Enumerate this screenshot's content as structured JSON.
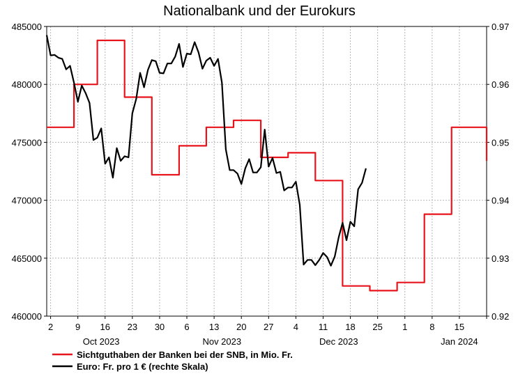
{
  "chart_data": {
    "type": "line",
    "title": "Nationalbank und der Eurokurs",
    "xlabel": "",
    "ylabel": "",
    "y_left": {
      "range": [
        460000,
        485000
      ],
      "ticks": [
        "460000",
        "465000",
        "470000",
        "475000",
        "480000",
        "485000"
      ]
    },
    "y_right": {
      "range": [
        0.92,
        0.97
      ],
      "ticks": [
        "0.92",
        "0.93",
        "0.94",
        "0.95",
        "0.96",
        "0.97"
      ]
    },
    "x_range": [
      "2023-10-01",
      "2024-01-22"
    ],
    "x_ticks": [
      {
        "date": "2023-10-02",
        "label": "2"
      },
      {
        "date": "2023-10-09",
        "label": "9"
      },
      {
        "date": "2023-10-16",
        "label": "16"
      },
      {
        "date": "2023-10-23",
        "label": "23"
      },
      {
        "date": "2023-10-30",
        "label": "30"
      },
      {
        "date": "2023-11-06",
        "label": "6"
      },
      {
        "date": "2023-11-13",
        "label": "13"
      },
      {
        "date": "2023-11-20",
        "label": "20"
      },
      {
        "date": "2023-11-27",
        "label": "27"
      },
      {
        "date": "2023-12-04",
        "label": "4"
      },
      {
        "date": "2023-12-11",
        "label": "11"
      },
      {
        "date": "2023-12-18",
        "label": "18"
      },
      {
        "date": "2023-12-25",
        "label": "25"
      },
      {
        "date": "2024-01-01",
        "label": "1"
      },
      {
        "date": "2024-01-08",
        "label": "8"
      },
      {
        "date": "2024-01-15",
        "label": "15"
      },
      {
        "date": "2024-01-22",
        "label": ""
      }
    ],
    "month_labels": [
      {
        "date": "2023-10-15",
        "label": "Oct 2023"
      },
      {
        "date": "2023-11-15",
        "label": "Nov 2023"
      },
      {
        "date": "2023-12-15",
        "label": "Dec 2023"
      },
      {
        "date": "2024-01-15",
        "label": "Jan 2024"
      }
    ],
    "grid": true,
    "legend_position": "bottom-left",
    "series": [
      {
        "name": "Sichtguthaben der Banken bei der SNB, in Mio. Fr.",
        "axis": "left",
        "color": "#e8141c",
        "step": true,
        "points": [
          [
            "2023-10-01",
            476300
          ],
          [
            "2023-10-08",
            480000
          ],
          [
            "2023-10-14",
            483800
          ],
          [
            "2023-10-21",
            478900
          ],
          [
            "2023-10-28",
            472200
          ],
          [
            "2023-11-04",
            474700
          ],
          [
            "2023-11-11",
            476300
          ],
          [
            "2023-11-18",
            476900
          ],
          [
            "2023-11-25",
            473700
          ],
          [
            "2023-12-02",
            474100
          ],
          [
            "2023-12-09",
            471700
          ],
          [
            "2023-12-16",
            462600
          ],
          [
            "2023-12-23",
            462200
          ],
          [
            "2023-12-30",
            462900
          ],
          [
            "2024-01-06",
            468800
          ],
          [
            "2024-01-13",
            476300
          ],
          [
            "2024-01-20",
            476300
          ],
          [
            "2024-01-22",
            473400
          ]
        ]
      },
      {
        "name": "Euro: Fr. pro 1 € (rechte Skala)",
        "axis": "right",
        "color": "#000000",
        "step": false,
        "points": [
          [
            "2023-10-01",
            0.9685
          ],
          [
            "2023-10-02",
            0.965
          ],
          [
            "2023-10-03",
            0.9651
          ],
          [
            "2023-10-04",
            0.9646
          ],
          [
            "2023-10-05",
            0.9644
          ],
          [
            "2023-10-06",
            0.9626
          ],
          [
            "2023-10-07",
            0.9632
          ],
          [
            "2023-10-08",
            0.9603
          ],
          [
            "2023-10-09",
            0.957
          ],
          [
            "2023-10-10",
            0.9598
          ],
          [
            "2023-10-11",
            0.9585
          ],
          [
            "2023-10-12",
            0.9568
          ],
          [
            "2023-10-13",
            0.9504
          ],
          [
            "2023-10-14",
            0.9508
          ],
          [
            "2023-10-15",
            0.9524
          ],
          [
            "2023-10-16",
            0.9463
          ],
          [
            "2023-10-17",
            0.9474
          ],
          [
            "2023-10-18",
            0.9439
          ],
          [
            "2023-10-19",
            0.949
          ],
          [
            "2023-10-20",
            0.9468
          ],
          [
            "2023-10-21",
            0.9476
          ],
          [
            "2023-10-22",
            0.9474
          ],
          [
            "2023-10-23",
            0.955
          ],
          [
            "2023-10-24",
            0.9575
          ],
          [
            "2023-10-25",
            0.962
          ],
          [
            "2023-10-26",
            0.9595
          ],
          [
            "2023-10-27",
            0.9625
          ],
          [
            "2023-10-28",
            0.9642
          ],
          [
            "2023-10-29",
            0.964
          ],
          [
            "2023-10-30",
            0.962
          ],
          [
            "2023-10-31",
            0.9619
          ],
          [
            "2023-11-01",
            0.9636
          ],
          [
            "2023-11-02",
            0.9636
          ],
          [
            "2023-11-03",
            0.9648
          ],
          [
            "2023-11-04",
            0.967
          ],
          [
            "2023-11-05",
            0.963
          ],
          [
            "2023-11-06",
            0.9653
          ],
          [
            "2023-11-07",
            0.9652
          ],
          [
            "2023-11-08",
            0.9673
          ],
          [
            "2023-11-09",
            0.9655
          ],
          [
            "2023-11-10",
            0.9627
          ],
          [
            "2023-11-11",
            0.9641
          ],
          [
            "2023-11-12",
            0.9646
          ],
          [
            "2023-11-13",
            0.9632
          ],
          [
            "2023-11-14",
            0.9644
          ],
          [
            "2023-11-15",
            0.9603
          ],
          [
            "2023-11-16",
            0.9488
          ],
          [
            "2023-11-17",
            0.9452
          ],
          [
            "2023-11-18",
            0.9452
          ],
          [
            "2023-11-19",
            0.9446
          ],
          [
            "2023-11-20",
            0.9428
          ],
          [
            "2023-11-21",
            0.9455
          ],
          [
            "2023-11-22",
            0.9471
          ],
          [
            "2023-11-23",
            0.9448
          ],
          [
            "2023-11-24",
            0.9448
          ],
          [
            "2023-11-25",
            0.9457
          ],
          [
            "2023-11-26",
            0.9522
          ],
          [
            "2023-11-27",
            0.9458
          ],
          [
            "2023-11-28",
            0.9473
          ],
          [
            "2023-11-29",
            0.9447
          ],
          [
            "2023-11-30",
            0.9449
          ],
          [
            "2023-12-01",
            0.9417
          ],
          [
            "2023-12-02",
            0.9422
          ],
          [
            "2023-12-03",
            0.9422
          ],
          [
            "2023-12-04",
            0.9432
          ],
          [
            "2023-12-05",
            0.9392
          ],
          [
            "2023-12-06",
            0.9289
          ],
          [
            "2023-12-07",
            0.9297
          ],
          [
            "2023-12-08",
            0.9297
          ],
          [
            "2023-12-09",
            0.9288
          ],
          [
            "2023-12-10",
            0.9297
          ],
          [
            "2023-12-11",
            0.9309
          ],
          [
            "2023-12-12",
            0.9302
          ],
          [
            "2023-12-13",
            0.9287
          ],
          [
            "2023-12-14",
            0.9303
          ],
          [
            "2023-12-15",
            0.9336
          ],
          [
            "2023-12-16",
            0.9361
          ],
          [
            "2023-12-17",
            0.9331
          ],
          [
            "2023-12-18",
            0.9363
          ],
          [
            "2023-12-19",
            0.9355
          ],
          [
            "2023-12-20",
            0.9419
          ],
          [
            "2023-12-21",
            0.943
          ],
          [
            "2023-12-22",
            0.9455
          ]
        ]
      }
    ]
  }
}
